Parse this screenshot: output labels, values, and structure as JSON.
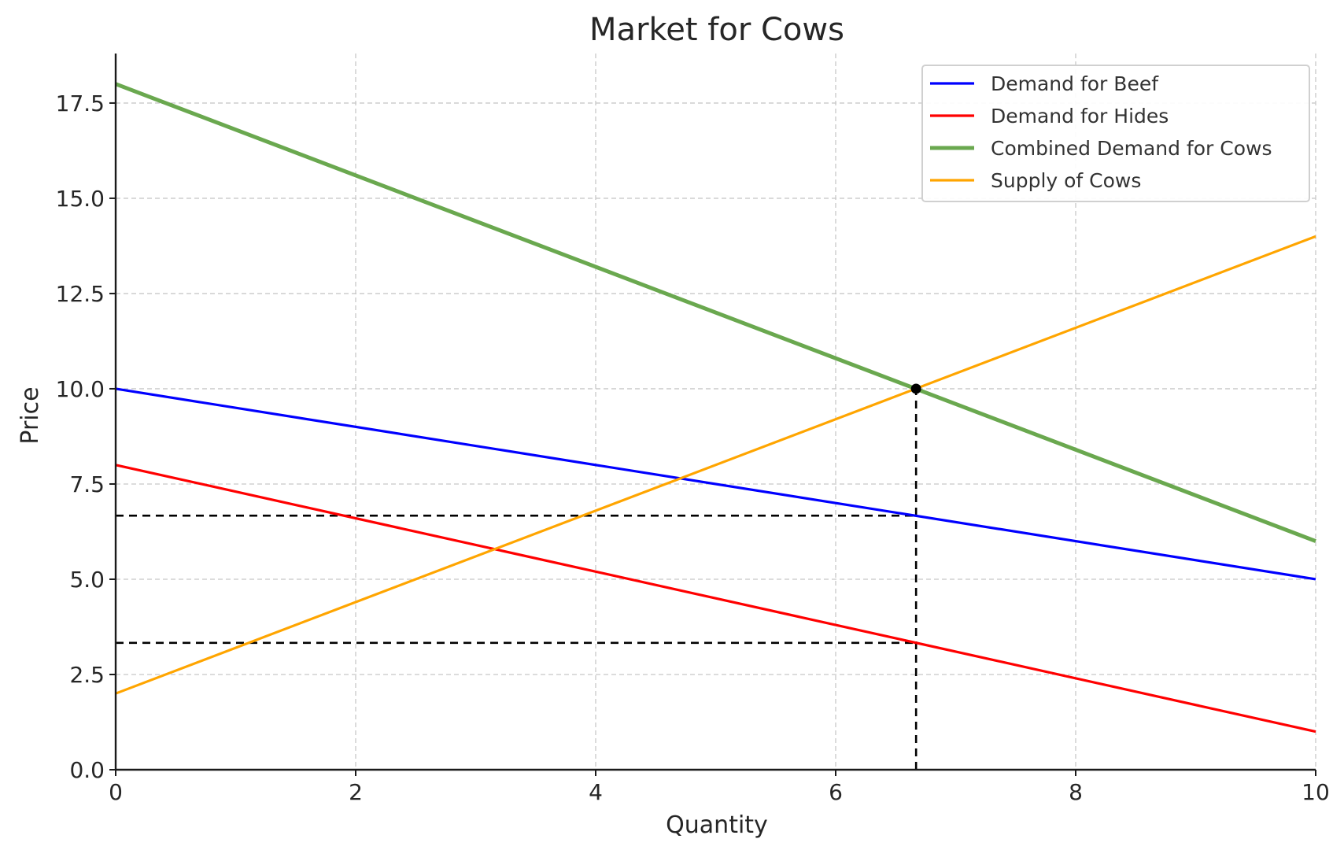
{
  "chart_data": {
    "type": "line",
    "title": "Market for Cows",
    "xlabel": "Quantity",
    "ylabel": "Price",
    "xlim": [
      0,
      10
    ],
    "ylim": [
      0,
      18.8
    ],
    "xticks": [
      0,
      2,
      4,
      6,
      8,
      10
    ],
    "xtick_labels": [
      "0",
      "2",
      "4",
      "6",
      "8",
      "10"
    ],
    "yticks": [
      0,
      2.5,
      5,
      7.5,
      10,
      12.5,
      15,
      17.5
    ],
    "ytick_labels": [
      "0.0",
      "2.5",
      "5.0",
      "7.5",
      "10.0",
      "12.5",
      "15.0",
      "17.5"
    ],
    "grid": true,
    "legend_position": "top-right",
    "series": [
      {
        "name": "Demand for Beef",
        "color": "#0000ff",
        "x": [
          0,
          10
        ],
        "y": [
          10,
          5
        ]
      },
      {
        "name": "Demand for Hides",
        "color": "#ff0000",
        "x": [
          0,
          10
        ],
        "y": [
          8,
          1
        ]
      },
      {
        "name": "Combined Demand for Cows",
        "color": "#6aa84f",
        "x": [
          0,
          10
        ],
        "y": [
          18,
          6
        ]
      },
      {
        "name": "Supply of Cows",
        "color": "#ffa500",
        "x": [
          0,
          10
        ],
        "y": [
          2,
          14
        ]
      }
    ],
    "equilibrium": {
      "x": 6.67,
      "y": 10
    },
    "reference_lines": [
      {
        "type": "vertical",
        "x": 6.67,
        "y_from": 0,
        "y_to": 10
      },
      {
        "type": "horizontal",
        "y": 6.67,
        "x_from": 0,
        "x_to": 6.67
      },
      {
        "type": "horizontal",
        "y": 3.33,
        "x_from": 0,
        "x_to": 6.67
      }
    ]
  }
}
